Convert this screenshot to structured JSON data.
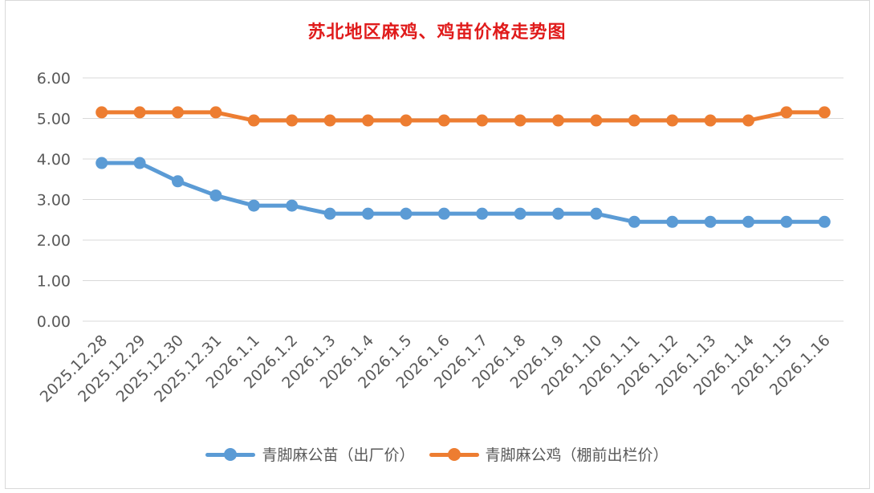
{
  "chart_data": {
    "type": "line",
    "title": "苏北地区麻鸡、鸡苗价格走势图",
    "xlabel": "",
    "ylabel": "",
    "ylim": [
      0,
      6
    ],
    "yticks": [
      "0.00",
      "1.00",
      "2.00",
      "3.00",
      "4.00",
      "5.00",
      "6.00"
    ],
    "grid": true,
    "legend": "bottom",
    "categories": [
      "2025.12.28",
      "2025.12.29",
      "2025.12.30",
      "2025.12.31",
      "2026.1.1",
      "2026.1.2",
      "2026.1.3",
      "2026.1.4",
      "2026.1.5",
      "2026.1.6",
      "2026.1.7",
      "2026.1.8",
      "2026.1.9",
      "2026.1.10",
      "2026.1.11",
      "2026.1.12",
      "2026.1.13",
      "2026.1.14",
      "2026.1.15",
      "2026.1.16"
    ],
    "series": [
      {
        "name": "青脚麻公苗（出厂价）",
        "color": "#5b9bd5",
        "values": [
          3.9,
          3.9,
          3.45,
          3.1,
          2.85,
          2.85,
          2.65,
          2.65,
          2.65,
          2.65,
          2.65,
          2.65,
          2.65,
          2.65,
          2.45,
          2.45,
          2.45,
          2.45,
          2.45,
          2.45
        ]
      },
      {
        "name": "青脚麻公鸡（棚前出栏价）",
        "color": "#ed7d31",
        "values": [
          5.15,
          5.15,
          5.15,
          5.15,
          4.95,
          4.95,
          4.95,
          4.95,
          4.95,
          4.95,
          4.95,
          4.95,
          4.95,
          4.95,
          4.95,
          4.95,
          4.95,
          4.95,
          5.15,
          5.15
        ]
      }
    ]
  }
}
